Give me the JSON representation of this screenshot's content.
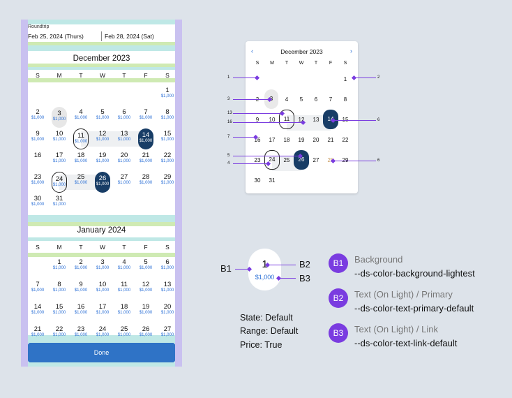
{
  "trip": {
    "label": "Roundtrip",
    "depart": "Feb 25, 2024 (Thurs)",
    "return": "Feb 28, 2024 (Sat)"
  },
  "weekdays": [
    "S",
    "M",
    "T",
    "W",
    "T",
    "F",
    "S"
  ],
  "december": {
    "title": "December 2023",
    "rows": [
      [
        null,
        null,
        null,
        null,
        null,
        null,
        {
          "d": "1",
          "p": "$1,000"
        }
      ],
      [
        {
          "d": "2",
          "p": "$1,000"
        },
        {
          "d": "3",
          "p": "$1,000",
          "s": "hov"
        },
        {
          "d": "4",
          "p": "$1,000"
        },
        {
          "d": "5",
          "p": "$1,000"
        },
        {
          "d": "6",
          "p": "$1,000"
        },
        {
          "d": "7",
          "p": "$1,000"
        },
        {
          "d": "8",
          "p": "$1,000"
        }
      ],
      [
        {
          "d": "9",
          "p": "$1,000"
        },
        {
          "d": "10",
          "p": "$1,000"
        },
        {
          "d": "11",
          "p": "$1,000",
          "s": "out"
        },
        {
          "d": "12",
          "p": "$1,000"
        },
        {
          "d": "13",
          "p": "$1,000"
        },
        {
          "d": "14",
          "p": "$1,000",
          "s": "sel"
        },
        {
          "d": "15",
          "p": "$1,000"
        }
      ],
      [
        {
          "d": "16",
          "p": ""
        },
        {
          "d": "17",
          "p": "$1,000"
        },
        {
          "d": "18",
          "p": "$1,000"
        },
        {
          "d": "19",
          "p": "$1,000"
        },
        {
          "d": "20",
          "p": "$1,000"
        },
        {
          "d": "21",
          "p": "$1,000"
        },
        {
          "d": "22",
          "p": "$1,000"
        }
      ],
      [
        {
          "d": "23",
          "p": "$1,000"
        },
        {
          "d": "24",
          "p": "$1,000",
          "s": "out"
        },
        {
          "d": "25",
          "p": "$1,000"
        },
        {
          "d": "26",
          "p": "$1,000",
          "s": "sel"
        },
        {
          "d": "27",
          "p": "$1,000"
        },
        {
          "d": "28",
          "p": "$1,000"
        },
        {
          "d": "29",
          "p": "$1,000"
        }
      ],
      [
        {
          "d": "30",
          "p": "$1,000"
        },
        {
          "d": "31",
          "p": "$1,000"
        },
        null,
        null,
        null,
        null,
        null
      ]
    ]
  },
  "january": {
    "title": "January 2024",
    "rows": [
      [
        null,
        {
          "d": "1",
          "p": "$1,000"
        },
        {
          "d": "2",
          "p": "$1,000"
        },
        {
          "d": "3",
          "p": "$1,000"
        },
        {
          "d": "4",
          "p": "$1,000"
        },
        {
          "d": "5",
          "p": "$1,000"
        },
        {
          "d": "6",
          "p": "$1,000"
        }
      ],
      [
        {
          "d": "7",
          "p": "$1,000"
        },
        {
          "d": "8",
          "p": "$1,000"
        },
        {
          "d": "9",
          "p": "$1,000"
        },
        {
          "d": "10",
          "p": "$1,000"
        },
        {
          "d": "11",
          "p": "$1,000"
        },
        {
          "d": "12",
          "p": "$1,000"
        },
        {
          "d": "13",
          "p": "$1,000"
        }
      ],
      [
        {
          "d": "14",
          "p": "$1,000"
        },
        {
          "d": "15",
          "p": "$1,000"
        },
        {
          "d": "16",
          "p": "$1,000"
        },
        {
          "d": "17",
          "p": "$1,000"
        },
        {
          "d": "18",
          "p": "$1,000"
        },
        {
          "d": "19",
          "p": "$1,000"
        },
        {
          "d": "20",
          "p": "$1,000"
        }
      ],
      [
        {
          "d": "21",
          "p": "$1,000"
        },
        {
          "d": "22",
          "p": "$1,000"
        },
        {
          "d": "23",
          "p": "$1,000"
        },
        {
          "d": "24",
          "p": "$1,000"
        },
        {
          "d": "25",
          "p": "$1,000"
        },
        {
          "d": "26",
          "p": "$1,000"
        },
        {
          "d": "27",
          "p": "$1,000"
        }
      ]
    ]
  },
  "done_label": "Done",
  "mini": {
    "title": "December 2023",
    "prev_icon": "chevron-left-icon",
    "next_icon": "chevron-right-icon",
    "rows": [
      [
        null,
        null,
        null,
        null,
        null,
        null,
        {
          "d": "1"
        }
      ],
      [
        {
          "d": "2"
        },
        {
          "d": "3",
          "s": "hov"
        },
        {
          "d": "4"
        },
        {
          "d": "5"
        },
        {
          "d": "6"
        },
        {
          "d": "7"
        },
        {
          "d": "8"
        }
      ],
      [
        {
          "d": "9"
        },
        {
          "d": "10"
        },
        {
          "d": "11",
          "s": "out"
        },
        {
          "d": "12"
        },
        {
          "d": "13"
        },
        {
          "d": "14",
          "s": "sel"
        },
        {
          "d": "15"
        }
      ],
      [
        {
          "d": "16"
        },
        {
          "d": "17"
        },
        {
          "d": "18"
        },
        {
          "d": "19"
        },
        {
          "d": "20"
        },
        {
          "d": "21"
        },
        {
          "d": "22"
        }
      ],
      [
        {
          "d": "23"
        },
        {
          "d": "24",
          "s": "out"
        },
        {
          "d": "25"
        },
        {
          "d": "26",
          "s": "sel"
        },
        {
          "d": "27"
        },
        {
          "d": "28",
          "s": "dim"
        },
        {
          "d": "29"
        }
      ],
      [
        {
          "d": "30"
        },
        {
          "d": "31"
        },
        null,
        null,
        null,
        null,
        null
      ]
    ],
    "callouts": [
      "1",
      "2",
      "3",
      "13",
      "16",
      "6",
      "7",
      "5",
      "4",
      "6"
    ]
  },
  "spec": {
    "day": "1",
    "price": "$1,000",
    "b1": "B1",
    "b2": "B2",
    "b3": "B3",
    "state": "State: Default",
    "range": "Range: Default",
    "price_flag": "Price: True"
  },
  "legend": [
    {
      "badge": "B1",
      "title": "Background",
      "token": "--ds-color-background-lightest"
    },
    {
      "badge": "B2",
      "title": "Text (On Light) / Primary",
      "token": "--ds-color-text-primary-default"
    },
    {
      "badge": "B3",
      "title": "Text (On Light) / Link",
      "token": "--ds-color-text-link-default"
    }
  ],
  "colors": {
    "accent": "#7a3ce0",
    "selected": "#183d66",
    "link": "#2a6fd6",
    "done": "#2f73c6"
  }
}
